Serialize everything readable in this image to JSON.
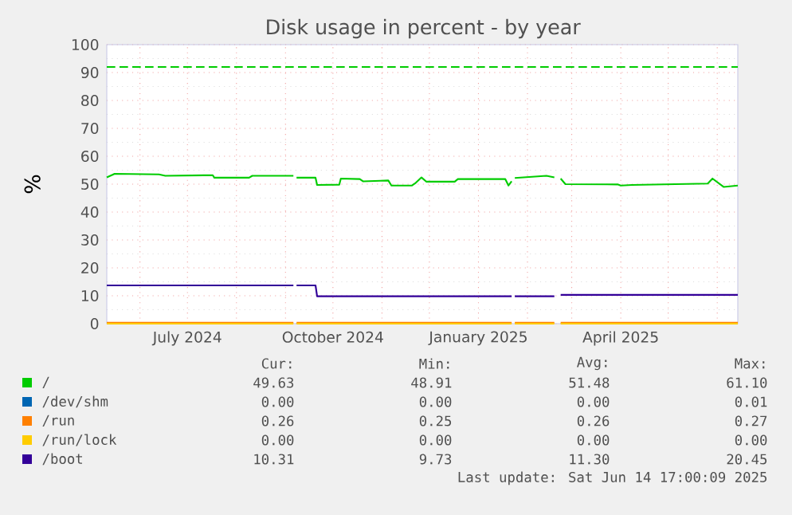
{
  "chart_data": {
    "type": "line",
    "title": "Disk usage in percent - by year",
    "ylabel": "%",
    "x": [
      "2024-05-11",
      "2024-05-16",
      "2024-06-13",
      "2024-06-17",
      "2024-07-17",
      "2024-07-18",
      "2024-08-09",
      "2024-08-11",
      "2024-09-06",
      "2024-09-07",
      "2024-09-08",
      "2024-09-20",
      "2024-09-21",
      "2024-10-05",
      "2024-10-06",
      "2024-10-18",
      "2024-10-20",
      "2024-10-31",
      "2024-11-05",
      "2024-11-07",
      "2024-11-20",
      "2024-11-22",
      "2024-11-26",
      "2024-11-29",
      "2024-12-17",
      "2024-12-19",
      "2025-01-18",
      "2025-01-20",
      "2025-01-22",
      "2025-01-23",
      "2025-01-24",
      "2025-02-13",
      "2025-02-18",
      "2025-02-20",
      "2025-02-22",
      "2025-02-25",
      "2025-03-30",
      "2025-04-01",
      "2025-04-08",
      "2025-05-26",
      "2025-05-29",
      "2025-06-05",
      "2025-06-14"
    ],
    "series": [
      {
        "name": "/",
        "color": "#00cc00",
        "values": [
          52.4,
          53.7,
          53.5,
          53,
          53.2,
          52.3,
          52.3,
          53,
          53,
          null,
          52.3,
          52.3,
          49.7,
          49.8,
          52,
          51.8,
          51,
          51.2,
          51.3,
          49.5,
          49.5,
          50.3,
          52.4,
          50.9,
          50.9,
          51.8,
          51.8,
          49.5,
          51,
          null,
          52.2,
          53,
          52.4,
          null,
          52,
          50,
          49.9,
          49.5,
          49.7,
          50.2,
          52,
          49,
          49.5
        ]
      },
      {
        "name": "/dev/shm",
        "color": "#0066b3",
        "values": [
          null,
          null,
          null,
          null,
          null,
          null,
          null,
          null,
          null,
          null,
          null,
          null,
          null,
          null,
          null,
          null,
          null,
          null,
          null,
          null,
          null,
          null,
          null,
          null,
          null,
          null,
          null,
          null,
          null,
          null,
          null,
          null,
          null,
          null,
          null,
          null,
          null,
          null,
          null,
          null,
          null,
          null,
          null
        ]
      },
      {
        "name": "/run",
        "color": "#ff8000",
        "values": [
          0.3,
          0.3,
          0.3,
          0.3,
          0.3,
          0.3,
          0.3,
          0.3,
          0.3,
          null,
          0.3,
          0.3,
          0.3,
          0.3,
          0.3,
          0.3,
          0.3,
          0.3,
          0.3,
          0.3,
          0.3,
          0.3,
          0.3,
          0.3,
          0.3,
          0.3,
          0.3,
          0.3,
          0.3,
          null,
          0.3,
          0.3,
          0.3,
          null,
          0.3,
          0.3,
          0.3,
          0.3,
          0.3,
          0.3,
          0.3,
          0.3,
          0.3
        ]
      },
      {
        "name": "/run/lock",
        "color": "#ffcc00",
        "values": [
          0,
          0,
          0,
          0,
          0,
          0,
          0,
          0,
          0,
          null,
          0,
          0,
          0,
          0,
          0,
          0,
          0,
          0,
          0,
          0,
          0,
          0,
          0,
          0,
          0,
          0,
          0,
          0,
          0,
          null,
          0,
          0,
          0,
          null,
          0,
          0,
          0,
          0,
          0,
          0,
          0,
          0,
          0
        ]
      },
      {
        "name": "/boot",
        "color": "#330099",
        "values": [
          13.7,
          13.7,
          13.7,
          13.7,
          13.7,
          13.7,
          13.7,
          13.7,
          13.7,
          null,
          13.7,
          13.7,
          9.8,
          9.8,
          9.8,
          9.8,
          9.8,
          9.8,
          9.8,
          9.8,
          9.8,
          9.8,
          9.8,
          9.8,
          9.8,
          9.8,
          9.8,
          9.8,
          9.8,
          null,
          9.8,
          9.8,
          9.8,
          null,
          10.3,
          10.3,
          10.3,
          10.3,
          10.3,
          10.3,
          10.3,
          10.3,
          10.3
        ]
      }
    ],
    "xlim": [
      "2024-05-11",
      "2025-06-14"
    ],
    "xticks": [
      {
        "value": "2024-06-01",
        "label": null
      },
      {
        "value": "2024-07-01",
        "label": "July 2024"
      },
      {
        "value": "2024-08-01",
        "label": null
      },
      {
        "value": "2024-09-01",
        "label": null
      },
      {
        "value": "2024-10-01",
        "label": "October 2024"
      },
      {
        "value": "2024-11-01",
        "label": null
      },
      {
        "value": "2024-12-01",
        "label": null
      },
      {
        "value": "2025-01-01",
        "label": "January 2025"
      },
      {
        "value": "2025-02-01",
        "label": null
      },
      {
        "value": "2025-03-01",
        "label": null
      },
      {
        "value": "2025-04-01",
        "label": "April 2025"
      },
      {
        "value": "2025-05-01",
        "label": null
      },
      {
        "value": "2025-06-01",
        "label": null
      }
    ],
    "ylim": [
      0,
      100
    ],
    "yticks": [
      0,
      10,
      20,
      30,
      40,
      50,
      60,
      70,
      80,
      90,
      100
    ],
    "grid": true,
    "legend": "bottom",
    "ref_lines": [
      {
        "axis": "y",
        "value": 92,
        "color": "#00cc00",
        "line_style": "dashed"
      }
    ],
    "annotations": [
      "Cur:",
      "Min:",
      "Avg:",
      "Max:",
      "49.63",
      "48.91",
      "51.48",
      "61.10",
      "0.00",
      "0.00",
      "0.00",
      "0.01",
      "0.26",
      "0.25",
      "0.26",
      "0.27",
      "0.00",
      "0.00",
      "0.00",
      "0.00",
      "10.31",
      "9.73",
      "11.30",
      "20.45",
      "Last update: Sat Jun 14 17:00:09 2025"
    ]
  }
}
